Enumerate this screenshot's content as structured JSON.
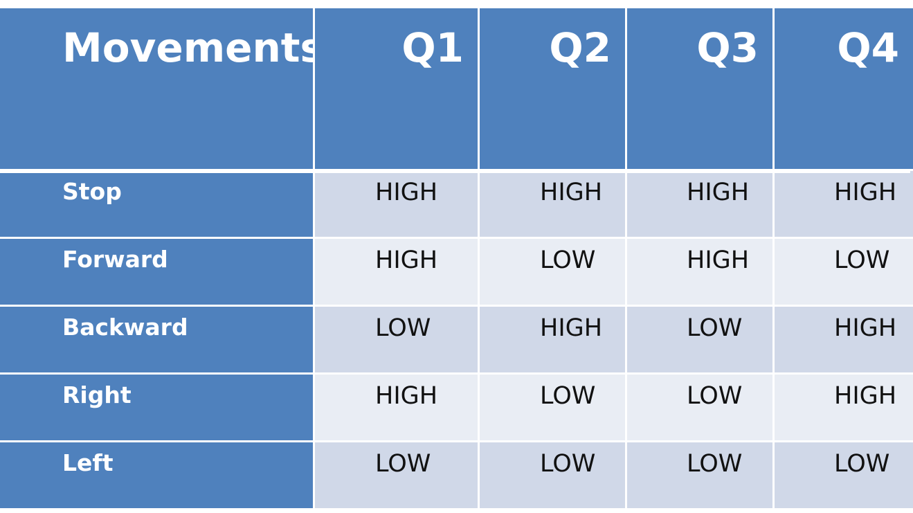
{
  "table": {
    "header": {
      "label": "Movements",
      "columns": [
        "Q1",
        "Q2",
        "Q3",
        "Q4"
      ]
    },
    "rows": [
      {
        "label": "Stop",
        "values": [
          "HIGH",
          "HIGH",
          "HIGH",
          "HIGH"
        ]
      },
      {
        "label": "Forward",
        "values": [
          "HIGH",
          "LOW",
          "HIGH",
          "LOW"
        ]
      },
      {
        "label": "Backward",
        "values": [
          "LOW",
          "HIGH",
          "LOW",
          "HIGH"
        ]
      },
      {
        "label": "Right",
        "values": [
          "HIGH",
          "LOW",
          "LOW",
          "HIGH"
        ]
      },
      {
        "label": "Left",
        "values": [
          "LOW",
          "LOW",
          "LOW",
          "LOW"
        ]
      }
    ],
    "colors": {
      "header": "#4f81bd",
      "band_dark": "#d0d8e8",
      "band_light": "#e9edf4"
    }
  }
}
